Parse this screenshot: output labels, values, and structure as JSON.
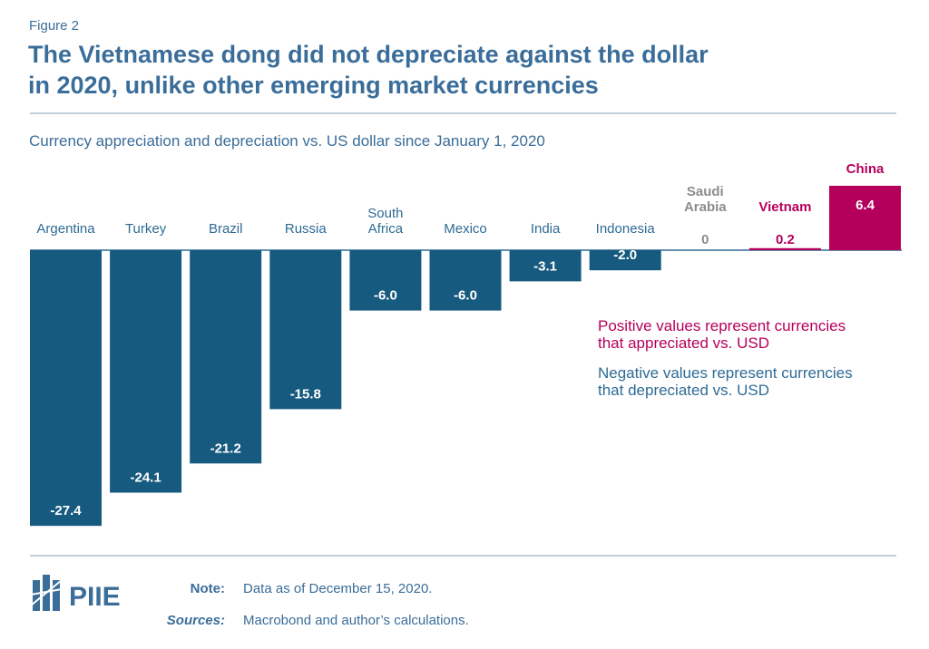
{
  "chart_data": {
    "type": "bar",
    "figure_label": "Figure 2",
    "title": [
      "The Vietnamese dong did not depreciate against the dollar",
      "in 2020, unlike other emerging market currencies"
    ],
    "subtitle": "Currency appreciation and depreciation vs. US dollar since January 1, 2020",
    "categories": [
      "Argentina",
      "Turkey",
      "Brazil",
      "Russia",
      "South Africa",
      "Mexico",
      "India",
      "Indonesia",
      "Saudi Arabia",
      "Vietnam",
      "China"
    ],
    "values": [
      -27.4,
      -24.1,
      -21.2,
      -15.8,
      -6.0,
      -6.0,
      -3.1,
      -2.0,
      0,
      0.2,
      6.4
    ],
    "value_labels": [
      "-27.4",
      "-24.1",
      "-21.2",
      "-15.8",
      "-6.0",
      "-6.0",
      "-3.1",
      "-2.0",
      "0",
      "0.2",
      "6.4"
    ],
    "colors": {
      "negative": "#175a80",
      "zero": "#8c8c8c",
      "positive": "#b5005b"
    },
    "annotations": [
      {
        "lines": [
          "Positive values represent currencies",
          "that appreciated vs. USD"
        ],
        "color": "#b5005b"
      },
      {
        "lines": [
          "Negative values represent currencies",
          "that depreciated vs. USD"
        ],
        "color": "#2e6b94"
      }
    ],
    "note_label": "Note:",
    "note": "Data as of December 15, 2020.",
    "sources_label": "Sources:",
    "sources": "Macrobond and author’s calculations.",
    "logo": "PIIE"
  }
}
